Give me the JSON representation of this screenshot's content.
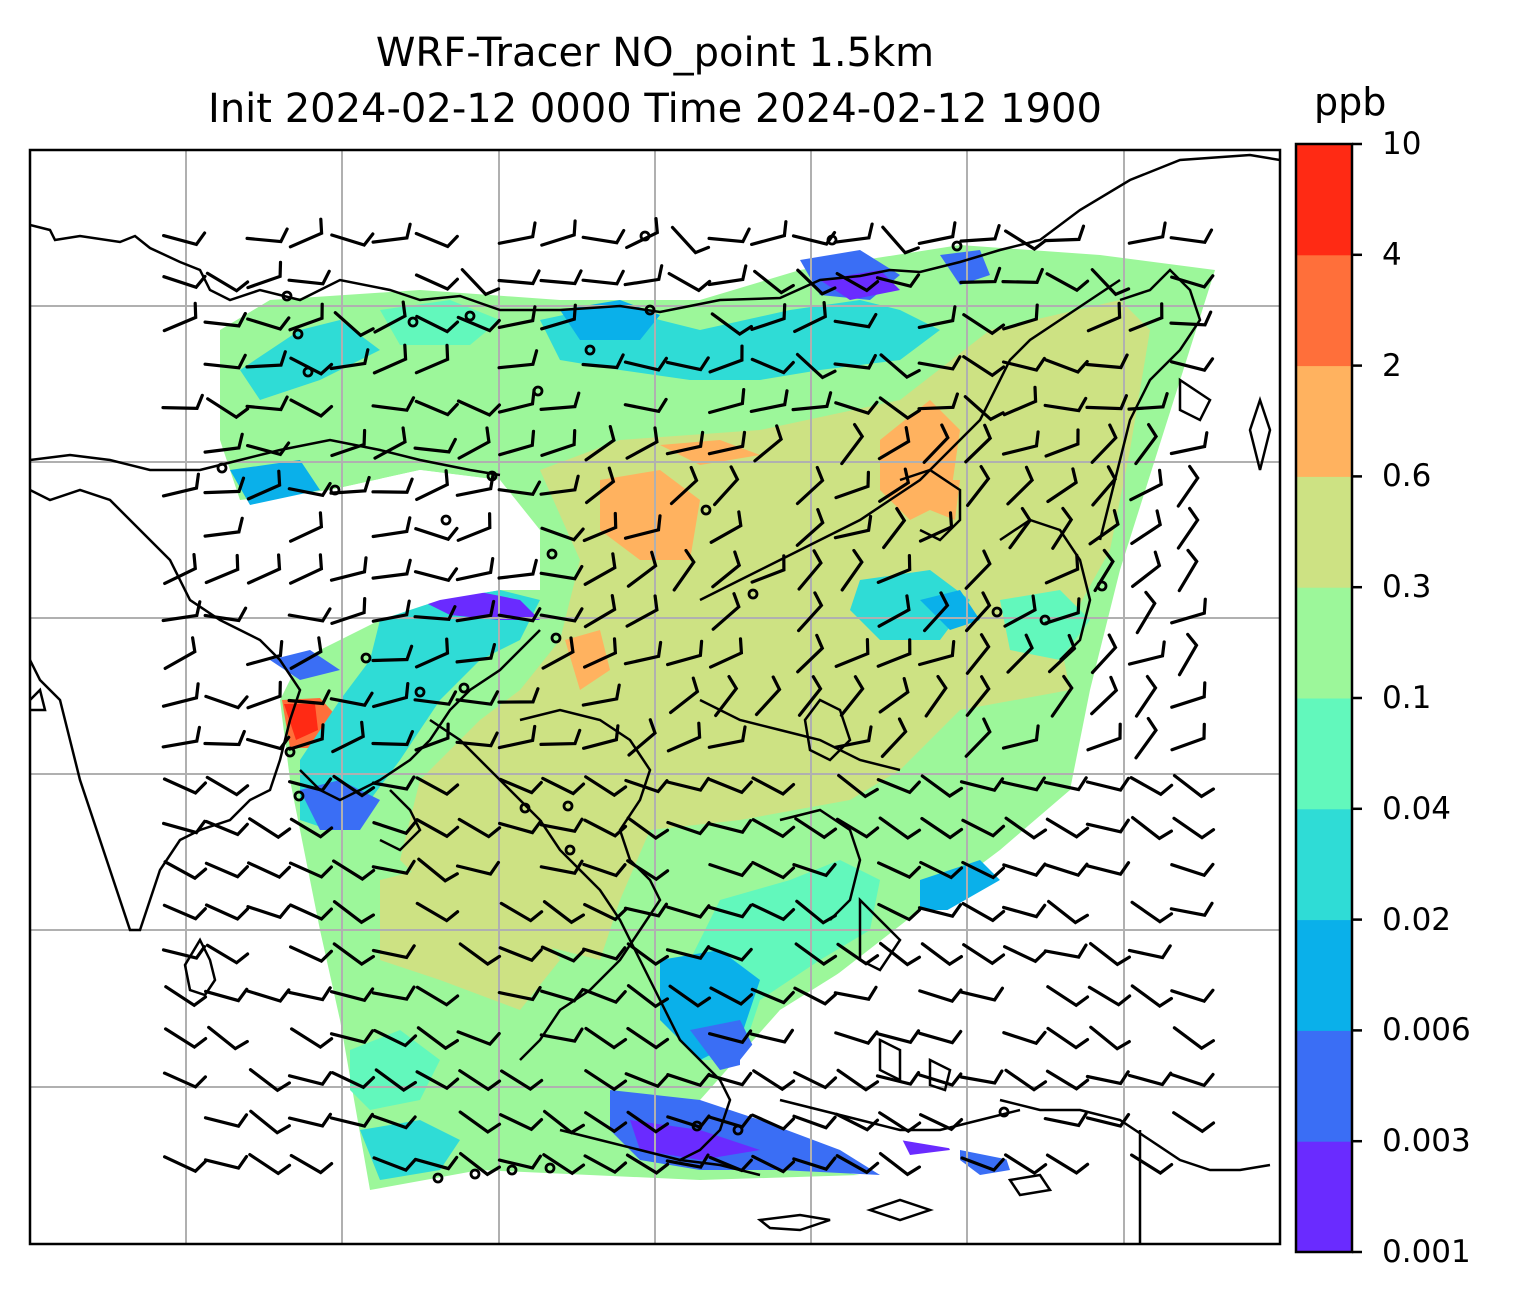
{
  "figure": {
    "title_line1": "WRF-Tracer NO_point 1.5km",
    "title_line2": "Init 2024-02-12 0000 Time 2024-02-12 1900"
  },
  "colorbar": {
    "unit": "ppb",
    "ticks": [
      "10",
      "4",
      "2",
      "0.6",
      "0.3",
      "0.1",
      "0.04",
      "0.02",
      "0.006",
      "0.003",
      "0.001"
    ],
    "colors": [
      "#6a2bff",
      "#3a6ef5",
      "#0ab0ea",
      "#2fdcd6",
      "#62f8bc",
      "#9cf79a",
      "#cde283",
      "#ffb25f",
      "#ff6f3a",
      "#ff2a14"
    ]
  },
  "map": {
    "field": "NO_point tracer concentration",
    "overlay": "wind barbs",
    "gridlines": true,
    "coastlines": true
  }
}
